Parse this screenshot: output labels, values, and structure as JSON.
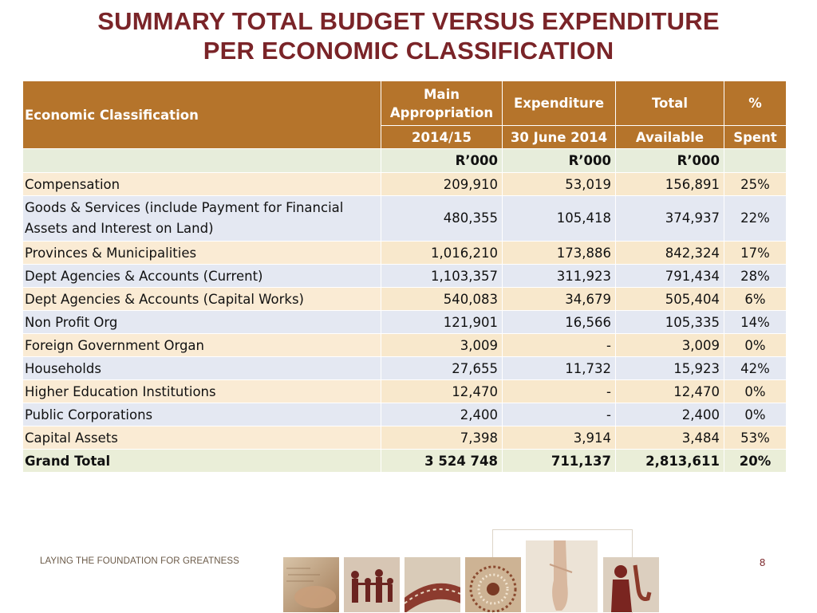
{
  "title": {
    "line1": "SUMMARY TOTAL BUDGET VERSUS EXPENDITURE",
    "line2": "PER ECONOMIC CLASSIFICATION"
  },
  "table": {
    "header": {
      "col1": "Economic Classification",
      "col2_top": "Main Appropriation",
      "col2_bottom": "2014/15",
      "col3_top": "Expenditure",
      "col3_bottom": "30 June 2014",
      "col4_top": "Total",
      "col4_bottom": "Available",
      "col5_top": "%",
      "col5_bottom": "Spent"
    },
    "units": [
      "R’000",
      "R’000",
      "R’000"
    ],
    "rows": [
      {
        "label": "Compensation",
        "appropriation": "209,910",
        "expenditure": "53,019",
        "available": "156,891",
        "spent": "25%"
      },
      {
        "label": "Goods & Services (include Payment for Financial Assets and Interest on Land)",
        "appropriation": "480,355",
        "expenditure": "105,418",
        "available": "374,937",
        "spent": "22%"
      },
      {
        "label": "Provinces & Municipalities",
        "appropriation": "1,016,210",
        "expenditure": "173,886",
        "available": "842,324",
        "spent": "17%"
      },
      {
        "label": "Dept Agencies & Accounts (Current)",
        "appropriation": "1,103,357",
        "expenditure": "311,923",
        "available": "791,434",
        "spent": "28%"
      },
      {
        "label": "Dept Agencies & Accounts (Capital Works)",
        "appropriation": "540,083",
        "expenditure": "34,679",
        "available": "505,404",
        "spent": "6%"
      },
      {
        "label": "Non Profit Org",
        "appropriation": "121,901",
        "expenditure": "16,566",
        "available": "105,335",
        "spent": "14%"
      },
      {
        "label": "Foreign Government Organ",
        "appropriation": "3,009",
        "expenditure": "-",
        "available": "3,009",
        "spent": "0%"
      },
      {
        "label": "Households",
        "appropriation": "27,655",
        "expenditure": "11,732",
        "available": "15,923",
        "spent": "42%"
      },
      {
        "label": "Higher Education Institutions",
        "appropriation": "12,470",
        "expenditure": "-",
        "available": "12,470",
        "spent": "0%"
      },
      {
        "label": "Public Corporations",
        "appropriation": "2,400",
        "expenditure": "-",
        "available": "2,400",
        "spent": "0%"
      },
      {
        "label": "Capital Assets",
        "appropriation": "7,398",
        "expenditure": "3,914",
        "available": "3,484",
        "spent": "53%"
      }
    ],
    "grand_total": {
      "label": "Grand Total",
      "appropriation": "3 524 748",
      "expenditure": "711,137",
      "available": "2,813,611",
      "spent": "20%"
    }
  },
  "footer": {
    "tagline": "LAYING THE FOUNDATION FOR GREATNESS",
    "page_number": "8"
  },
  "images": [
    {
      "icon": "handwriting-photo"
    },
    {
      "icon": "family-silhouette-photo"
    },
    {
      "icon": "film-strip-photo"
    },
    {
      "icon": "beadwork-photo"
    },
    {
      "icon": "ballet-shoe-photo"
    },
    {
      "icon": "saxophone-player-photo"
    }
  ],
  "colors": {
    "title": "#7a2428",
    "header_bg": "#b5742b",
    "row_odd": "#f8e8cc",
    "row_even": "#e4e8f2",
    "unit_row": "#e7eddb"
  }
}
